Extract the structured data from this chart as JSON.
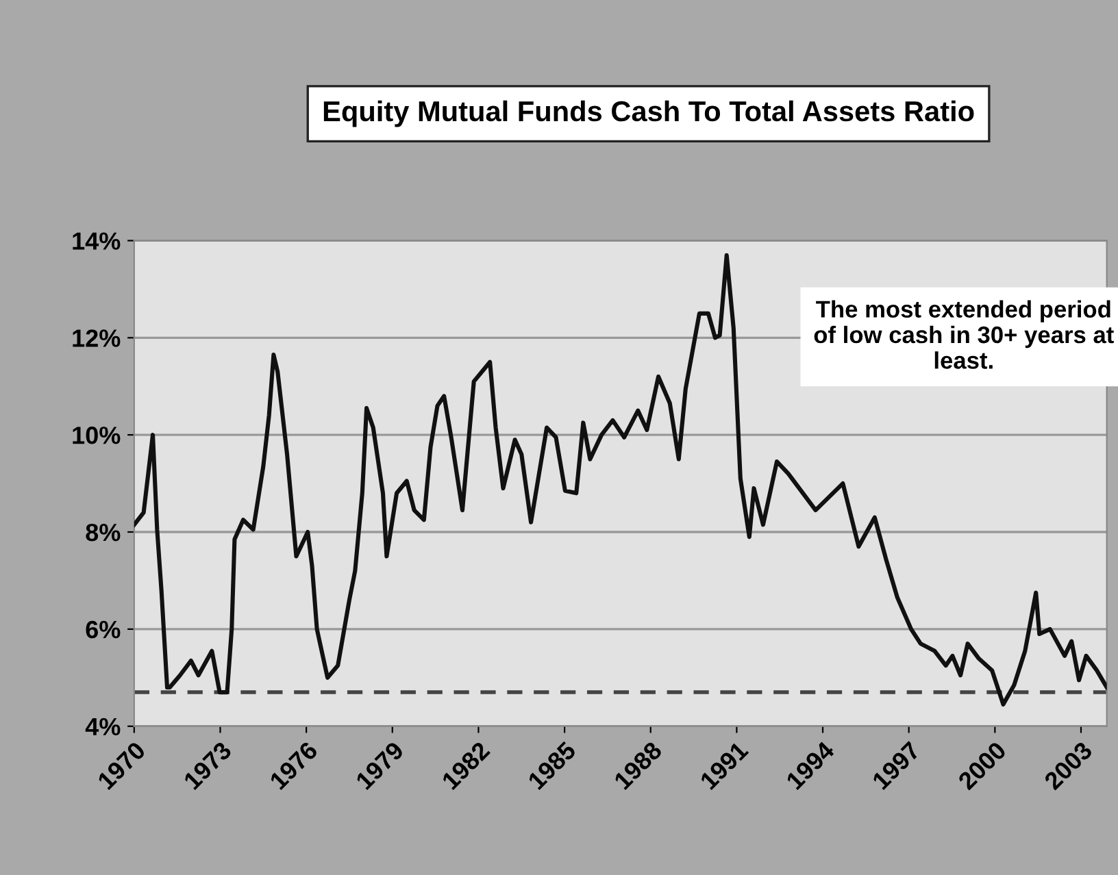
{
  "chart_data": {
    "type": "line",
    "title": "Equity Mutual Funds Cash To Total Assets Ratio",
    "annotations": [
      "The most extended period of low cash in 30+ years at least."
    ],
    "xlim": [
      1970,
      2003.9
    ],
    "xticks": [
      1970,
      1973,
      1976,
      1979,
      1982,
      1985,
      1988,
      1991,
      1994,
      1997,
      2000,
      2003
    ],
    "ylim": [
      4,
      14
    ],
    "yticks": [
      {
        "value": 4,
        "label": "4%"
      },
      {
        "value": 6,
        "label": "6%"
      },
      {
        "value": 8,
        "label": "8%"
      },
      {
        "value": 10,
        "label": "10%"
      },
      {
        "value": 12,
        "label": "12%"
      },
      {
        "value": 14,
        "label": "14%"
      }
    ],
    "grid": "y",
    "legend": false,
    "marker": "none",
    "line_style": "solid",
    "ref_lines": [
      {
        "axis": "y",
        "value": 4.7,
        "color": "#444444",
        "line_style": "dashed"
      }
    ],
    "series": [
      {
        "color": "#111111",
        "x": [
          1970.0,
          1970.33,
          1970.65,
          1970.8,
          1970.95,
          1971.15,
          1971.24,
          1971.6,
          1971.98,
          1972.24,
          1972.71,
          1972.98,
          1973.24,
          1973.4,
          1973.5,
          1973.8,
          1974.15,
          1974.5,
          1974.7,
          1974.86,
          1975.0,
          1975.33,
          1975.65,
          1976.05,
          1976.2,
          1976.37,
          1976.74,
          1977.1,
          1977.5,
          1977.7,
          1977.95,
          1978.1,
          1978.33,
          1978.67,
          1978.8,
          1979.15,
          1979.5,
          1979.76,
          1980.1,
          1980.33,
          1980.57,
          1980.8,
          1981.05,
          1981.44,
          1981.84,
          1982.4,
          1982.6,
          1982.86,
          1983.27,
          1983.5,
          1983.83,
          1984.38,
          1984.7,
          1985.02,
          1985.41,
          1985.65,
          1985.89,
          1986.29,
          1986.68,
          1987.08,
          1987.56,
          1987.87,
          1988.27,
          1988.67,
          1988.98,
          1989.22,
          1989.7,
          1990.01,
          1990.25,
          1990.41,
          1990.65,
          1990.89,
          1991.13,
          1991.44,
          1991.6,
          1991.92,
          1992.4,
          1992.8,
          1993.75,
          1994.7,
          1995.25,
          1995.81,
          1996.2,
          1996.6,
          1997.08,
          1997.41,
          1997.9,
          1998.29,
          1998.52,
          1998.8,
          1999.05,
          1999.43,
          1999.9,
          2000.29,
          2000.67,
          2001.05,
          2001.43,
          2001.55,
          2001.92,
          2002.43,
          2002.67,
          2002.93,
          2003.18,
          2003.55,
          2003.9
        ],
        "values": [
          8.15,
          8.4,
          10.0,
          8.05,
          6.8,
          4.8,
          4.8,
          5.05,
          5.35,
          5.05,
          5.55,
          4.7,
          4.7,
          6.0,
          7.85,
          8.25,
          8.05,
          9.35,
          10.4,
          11.65,
          11.3,
          9.6,
          7.5,
          8.0,
          7.3,
          6.0,
          5.0,
          5.25,
          6.6,
          7.2,
          8.8,
          10.55,
          10.15,
          8.8,
          7.5,
          8.8,
          9.05,
          8.45,
          8.25,
          9.75,
          10.6,
          10.8,
          9.95,
          8.45,
          11.1,
          11.5,
          10.15,
          8.9,
          9.9,
          9.6,
          8.2,
          10.15,
          9.95,
          8.85,
          8.8,
          10.25,
          9.5,
          10.0,
          10.3,
          9.95,
          10.5,
          10.1,
          11.2,
          10.65,
          9.5,
          10.95,
          12.5,
          12.5,
          12.0,
          12.05,
          13.7,
          12.2,
          9.1,
          7.9,
          8.9,
          8.15,
          9.45,
          9.2,
          8.45,
          9.0,
          7.7,
          8.3,
          7.45,
          6.65,
          6.0,
          5.7,
          5.55,
          5.25,
          5.45,
          5.05,
          5.7,
          5.4,
          5.15,
          4.45,
          4.85,
          5.55,
          6.75,
          5.9,
          6.0,
          5.45,
          5.75,
          4.95,
          5.45,
          5.15,
          4.8
        ]
      }
    ]
  }
}
